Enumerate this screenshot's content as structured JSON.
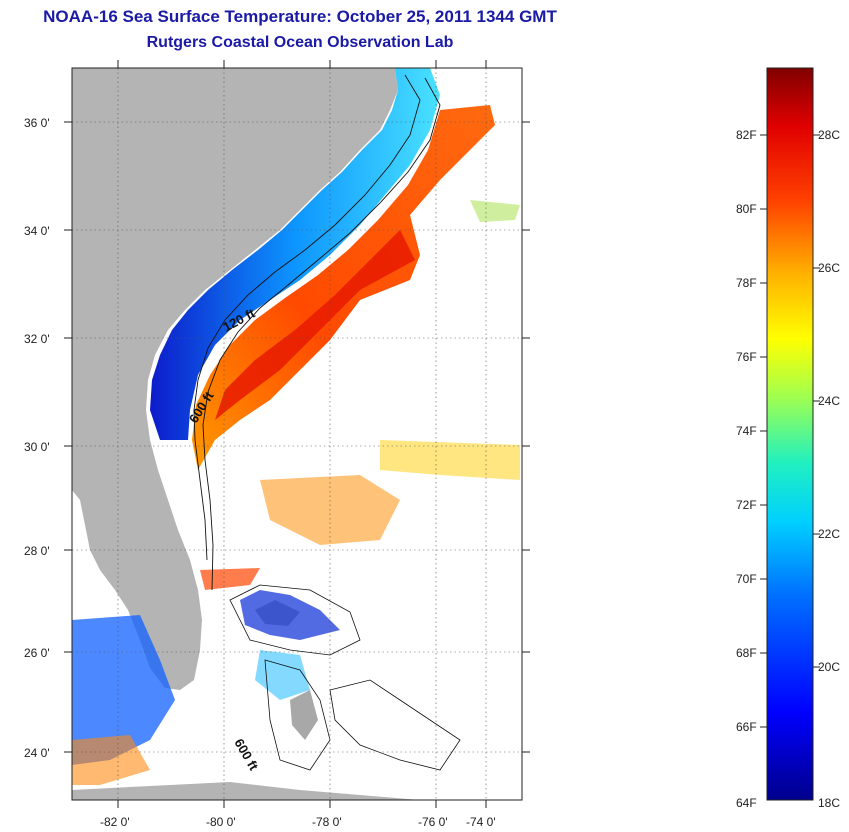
{
  "title": "NOAA-16 Sea Surface Temperature:  October 25, 2011 1344 GMT",
  "subtitle": "Rutgers Coastal Ocean Observation Lab",
  "map": {
    "lat_labels": [
      "36 0'",
      "34 0'",
      "32 0'",
      "30 0'",
      "28 0'",
      "26 0'",
      "24 0'"
    ],
    "lon_labels": [
      "-82 0'",
      "-80 0'",
      "-78 0'",
      "-76 0'",
      "-74 0'"
    ],
    "contour_labels": [
      "120 ft",
      "600 ft",
      "600 ft"
    ],
    "land_color": "#b4b4b4"
  },
  "colorbar": {
    "fahrenheit_labels": [
      "82F",
      "80F",
      "78F",
      "76F",
      "74F",
      "72F",
      "70F",
      "68F",
      "66F",
      "64F"
    ],
    "celsius_labels": [
      "28C",
      "26C",
      "24C",
      "22C",
      "20C",
      "18C"
    ]
  }
}
